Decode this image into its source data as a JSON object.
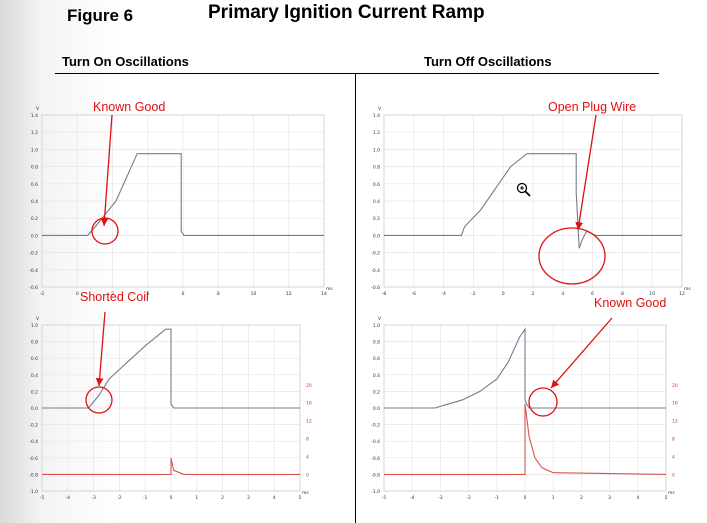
{
  "figure_label": "Figure 6",
  "title": "Primary Ignition Current Ramp",
  "panels": {
    "left_heading": "Turn On Oscillations",
    "right_heading": "Turn Off Oscillations"
  },
  "chart_data": [
    {
      "type": "line",
      "position": "top-left",
      "annotation": "Known Good",
      "y_unit": "V",
      "x_unit": "ms",
      "y_ticks": [
        "1.4",
        "1.2",
        "1.0",
        "0.8",
        "0.6",
        "0.4",
        "0.2",
        "0.0",
        "-0.2",
        "-0.4",
        "-0.6"
      ],
      "x_ticks": [
        "-2",
        "0",
        "2",
        "4",
        "6",
        "8",
        "10",
        "12",
        "14"
      ],
      "xlim": [
        -2,
        14
      ],
      "ylim": [
        -0.6,
        1.4
      ],
      "series": [
        {
          "color": "#7a7a8c",
          "x": [
            -2,
            0.6,
            1.1,
            1.6,
            2.2,
            3.4,
            5.9,
            5.9,
            6.05,
            14
          ],
          "y": [
            0.0,
            0.0,
            0.12,
            0.25,
            0.4,
            0.95,
            0.95,
            0.05,
            0.0,
            0.0
          ]
        }
      ]
    },
    {
      "type": "line",
      "position": "top-right",
      "annotation": "Open Plug Wire",
      "y_unit": "V",
      "x_unit": "ms",
      "y_ticks": [
        "1.4",
        "1.2",
        "1.0",
        "0.8",
        "0.6",
        "0.4",
        "0.2",
        "0.0",
        "-0.2",
        "-0.4",
        "-0.6"
      ],
      "x_ticks": [
        "-8",
        "-6",
        "-4",
        "-2",
        "0",
        "2",
        "4",
        "6",
        "8",
        "10",
        "12"
      ],
      "xlim": [
        -8,
        12
      ],
      "ylim": [
        -0.6,
        1.4
      ],
      "series": [
        {
          "color": "#7a7a8c",
          "x": [
            -8,
            -2.8,
            -2.6,
            -1.5,
            -0.5,
            0.5,
            1.6,
            4.9,
            4.9,
            5.1,
            5.3,
            5.6,
            6.2,
            12
          ],
          "y": [
            0.0,
            0.0,
            0.1,
            0.3,
            0.55,
            0.8,
            0.95,
            0.95,
            0.5,
            -0.15,
            -0.05,
            0.05,
            0.0,
            0.0
          ]
        }
      ]
    },
    {
      "type": "line",
      "position": "bottom-left",
      "annotation": "Shorted Coil",
      "y_unit": "V",
      "x_unit": "ms",
      "y_ticks": [
        "1.0",
        "0.8",
        "0.6",
        "0.4",
        "0.2",
        "0.0",
        "-0.2",
        "-0.4",
        "-0.6",
        "-0.8",
        "-1.0"
      ],
      "y2_ticks": [
        "20",
        "16",
        "12",
        "8",
        "4",
        "0"
      ],
      "x_ticks": [
        "-5",
        "-4",
        "-3",
        "-2",
        "-1",
        "0",
        "1",
        "2",
        "3",
        "4",
        "5"
      ],
      "xlim": [
        -5,
        5
      ],
      "ylim": [
        -1.0,
        1.0
      ],
      "series": [
        {
          "color": "#7a7a8c",
          "x": [
            -5,
            -3.2,
            -2.8,
            -2.4,
            -1.0,
            -0.2,
            0.0,
            0.0,
            0.1,
            5
          ],
          "y": [
            0.0,
            0.0,
            0.15,
            0.35,
            0.75,
            0.95,
            0.95,
            0.05,
            0.0,
            0.0
          ]
        },
        {
          "color": "#d9534f",
          "x": [
            -5,
            0.0,
            0.0,
            0.1,
            0.5,
            5
          ],
          "y": [
            -0.8,
            -0.8,
            -0.6,
            -0.75,
            -0.8,
            -0.8
          ]
        }
      ]
    },
    {
      "type": "line",
      "position": "bottom-right",
      "annotation": "Known Good",
      "y_unit": "V",
      "x_unit": "ms",
      "y_ticks": [
        "1.0",
        "0.8",
        "0.6",
        "0.4",
        "0.2",
        "0.0",
        "-0.2",
        "-0.4",
        "-0.6",
        "-0.8",
        "-1.0"
      ],
      "y2_ticks": [
        "20",
        "16",
        "12",
        "8",
        "4",
        "0"
      ],
      "x_ticks": [
        "-5",
        "-4",
        "-3",
        "-2",
        "-1",
        "0",
        "1",
        "2",
        "3",
        "4",
        "5"
      ],
      "xlim": [
        -5,
        5
      ],
      "ylim": [
        -1.0,
        1.0
      ],
      "series": [
        {
          "color": "#7a7a8c",
          "x": [
            -5,
            -3.2,
            -2.8,
            -2.2,
            -1.6,
            -1.0,
            -0.6,
            -0.2,
            0.0,
            0.0,
            0.05,
            0.15,
            5
          ],
          "y": [
            0.0,
            0.0,
            0.04,
            0.1,
            0.2,
            0.35,
            0.55,
            0.85,
            0.95,
            0.1,
            0.05,
            0.0,
            0.0
          ]
        },
        {
          "color": "#d9534f",
          "x": [
            -5,
            0.0,
            0.0,
            0.15,
            0.35,
            0.6,
            1.0,
            5
          ],
          "y": [
            -0.8,
            -0.8,
            0.05,
            -0.35,
            -0.6,
            -0.72,
            -0.78,
            -0.8
          ]
        }
      ]
    }
  ]
}
